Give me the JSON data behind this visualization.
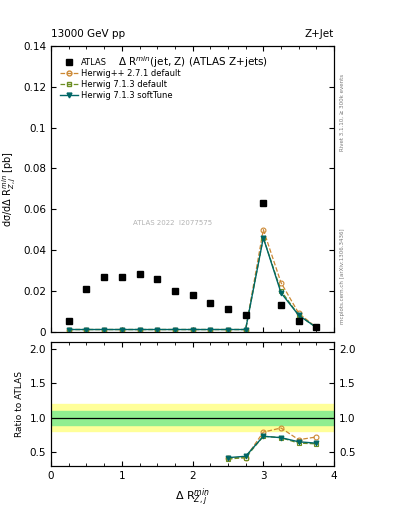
{
  "title_left": "13000 GeV pp",
  "title_right": "Z+Jet",
  "plot_title": "Δ R$^{min}$(jet, Z) (ATLAS Z+jets)",
  "xlabel": "Δ R$^{min}_{Z,j}$",
  "ylabel_main": "dσ/dΔ R$^{min}_{Z,j}$ [pb]",
  "ylabel_ratio": "Ratio to ATLAS",
  "right_label_top": "Rivet 3.1.10, ≥ 300k events",
  "right_label_bottom": "mcplots.cern.ch [arXiv:1306.3436]",
  "watermark": "ATLAS 2022  I2077575",
  "atlas_x": [
    0.25,
    0.5,
    0.75,
    1.0,
    1.25,
    1.5,
    1.75,
    2.0,
    2.25,
    2.5,
    2.75,
    3.0,
    3.25,
    3.5,
    3.75
  ],
  "atlas_y": [
    0.005,
    0.021,
    0.027,
    0.027,
    0.028,
    0.026,
    0.02,
    0.018,
    0.014,
    0.011,
    0.008,
    0.063,
    0.013,
    0.005,
    0.002
  ],
  "herwig271_x": [
    0.25,
    0.5,
    0.75,
    1.0,
    1.25,
    1.5,
    1.75,
    2.0,
    2.25,
    2.5,
    2.75,
    3.0,
    3.25,
    3.5,
    3.75
  ],
  "herwig271_y": [
    0.001,
    0.001,
    0.001,
    0.001,
    0.001,
    0.001,
    0.001,
    0.001,
    0.001,
    0.001,
    0.001,
    0.05,
    0.024,
    0.009,
    0.002
  ],
  "herwig713_x": [
    0.25,
    0.5,
    0.75,
    1.0,
    1.25,
    1.5,
    1.75,
    2.0,
    2.25,
    2.5,
    2.75,
    3.0,
    3.25,
    3.5,
    3.75
  ],
  "herwig713_y": [
    0.001,
    0.001,
    0.001,
    0.001,
    0.001,
    0.001,
    0.001,
    0.001,
    0.001,
    0.001,
    0.001,
    0.046,
    0.02,
    0.008,
    0.002
  ],
  "herwig713s_x": [
    0.25,
    0.5,
    0.75,
    1.0,
    1.25,
    1.5,
    1.75,
    2.0,
    2.25,
    2.5,
    2.75,
    3.0,
    3.25,
    3.5,
    3.75
  ],
  "herwig713s_y": [
    0.001,
    0.001,
    0.001,
    0.001,
    0.001,
    0.001,
    0.001,
    0.001,
    0.001,
    0.001,
    0.001,
    0.046,
    0.019,
    0.008,
    0.002
  ],
  "ratio_herwig271_x": [
    2.5,
    2.75,
    3.0,
    3.25,
    3.5,
    3.75
  ],
  "ratio_herwig271_y": [
    0.42,
    0.42,
    0.79,
    0.85,
    0.68,
    0.72
  ],
  "ratio_herwig713_x": [
    2.5,
    2.75,
    3.0,
    3.25,
    3.5,
    3.75
  ],
  "ratio_herwig713_y": [
    0.4,
    0.42,
    0.73,
    0.71,
    0.63,
    0.62
  ],
  "ratio_herwig713s_x": [
    2.5,
    2.75,
    3.0,
    3.25,
    3.5,
    3.75
  ],
  "ratio_herwig713s_y": [
    0.42,
    0.44,
    0.73,
    0.71,
    0.65,
    0.63
  ],
  "band_inner_lo": 0.9,
  "band_inner_hi": 1.1,
  "band_outer_lo": 0.8,
  "band_outer_hi": 1.2,
  "color_herwig271": "#cc8833",
  "color_herwig713": "#6b8e23",
  "color_herwig713s": "#006666",
  "color_band_inner": "#90EE90",
  "color_band_outer": "#FFFF99",
  "xlim": [
    0,
    4
  ],
  "ylim_main": [
    0,
    0.14
  ],
  "ylim_ratio": [
    0.3,
    2.1
  ],
  "yticks_main": [
    0.0,
    0.02,
    0.04,
    0.06,
    0.08,
    0.1,
    0.12,
    0.14
  ],
  "yticks_ratio": [
    0.5,
    1.0,
    1.5,
    2.0
  ],
  "legend_entries": [
    "ATLAS",
    "Herwig++ 2.7.1 default",
    "Herwig 7.1.3 default",
    "Herwig 7.1.3 softTune"
  ]
}
